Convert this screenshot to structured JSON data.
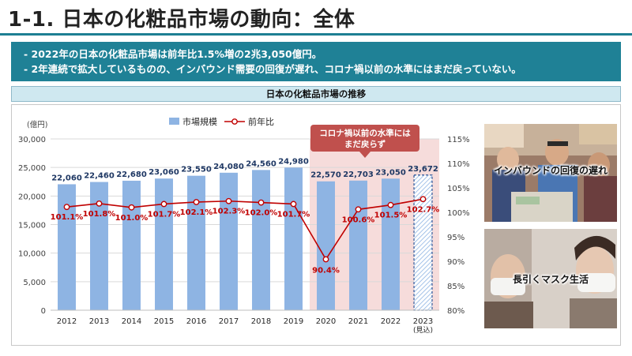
{
  "header": {
    "title": "1-1. 日本の化粧品市場の動向：全体"
  },
  "summary": {
    "lines": [
      "- 2022年の日本の化粧品市場は前年比1.5%増の2兆3,050億円。",
      "- 2年連続で拡大しているものの、インバウンド需要の回復が遅れ、コロナ禍以前の水準にはまだ戻っていない。"
    ]
  },
  "section": {
    "title": "日本の化粧品市場の推移"
  },
  "chart_data": {
    "type": "bar",
    "categories": [
      "2012",
      "2013",
      "2014",
      "2015",
      "2016",
      "2017",
      "2018",
      "2019",
      "2020",
      "2021",
      "2022",
      "2023"
    ],
    "category_sublabels": [
      "",
      "",
      "",
      "",
      "",
      "",
      "",
      "",
      "",
      "",
      "",
      "(見込)"
    ],
    "series": [
      {
        "name": "市場規模",
        "type": "bar",
        "axis": "left",
        "color": "#8eb4e3",
        "values": [
          22060,
          22460,
          22680,
          23060,
          23550,
          24080,
          24560,
          24980,
          22570,
          22703,
          23050,
          23672
        ],
        "labels": [
          "22,060",
          "22,460",
          "22,680",
          "23,060",
          "23,550",
          "24,080",
          "24,560",
          "24,980",
          "22,570",
          "22,703",
          "23,050",
          "23,672"
        ]
      },
      {
        "name": "前年比",
        "type": "line",
        "axis": "right",
        "color": "#c00000",
        "values": [
          101.1,
          101.8,
          101.0,
          101.7,
          102.1,
          102.3,
          102.0,
          101.7,
          90.4,
          100.6,
          101.5,
          102.7
        ],
        "labels": [
          "101.1%",
          "101.8%",
          "101.0%",
          "101.7%",
          "102.1%",
          "102.3%",
          "102.0%",
          "101.7%",
          "90.4%",
          "100.6%",
          "101.5%",
          "102.7%"
        ]
      }
    ],
    "y_left": {
      "unit": "(億円)",
      "ylim": [
        0,
        30000
      ],
      "ticks": [
        0,
        5000,
        10000,
        15000,
        20000,
        25000,
        30000
      ],
      "tick_labels": [
        "0",
        "5,000",
        "10,000",
        "15,000",
        "20,000",
        "25,000",
        "30,000"
      ]
    },
    "y_right": {
      "ylim": [
        80,
        115
      ],
      "ticks": [
        80,
        85,
        90,
        95,
        100,
        105,
        110,
        115
      ],
      "tick_labels": [
        "80%",
        "85%",
        "90%",
        "95%",
        "100%",
        "105%",
        "110%",
        "115%"
      ]
    },
    "highlight": {
      "from": "2020",
      "to": "2023",
      "color": "#f6dcdb"
    },
    "projected_bar": "2023",
    "legend": {
      "position": "top"
    },
    "callout": {
      "lines": [
        "コロナ禍以前の水準には",
        "まだ戻らず"
      ],
      "color": "#c0504d"
    },
    "grid": true
  },
  "photos": [
    {
      "caption": "インバウンドの回復の遅れ"
    },
    {
      "caption": "長引くマスク生活"
    }
  ]
}
